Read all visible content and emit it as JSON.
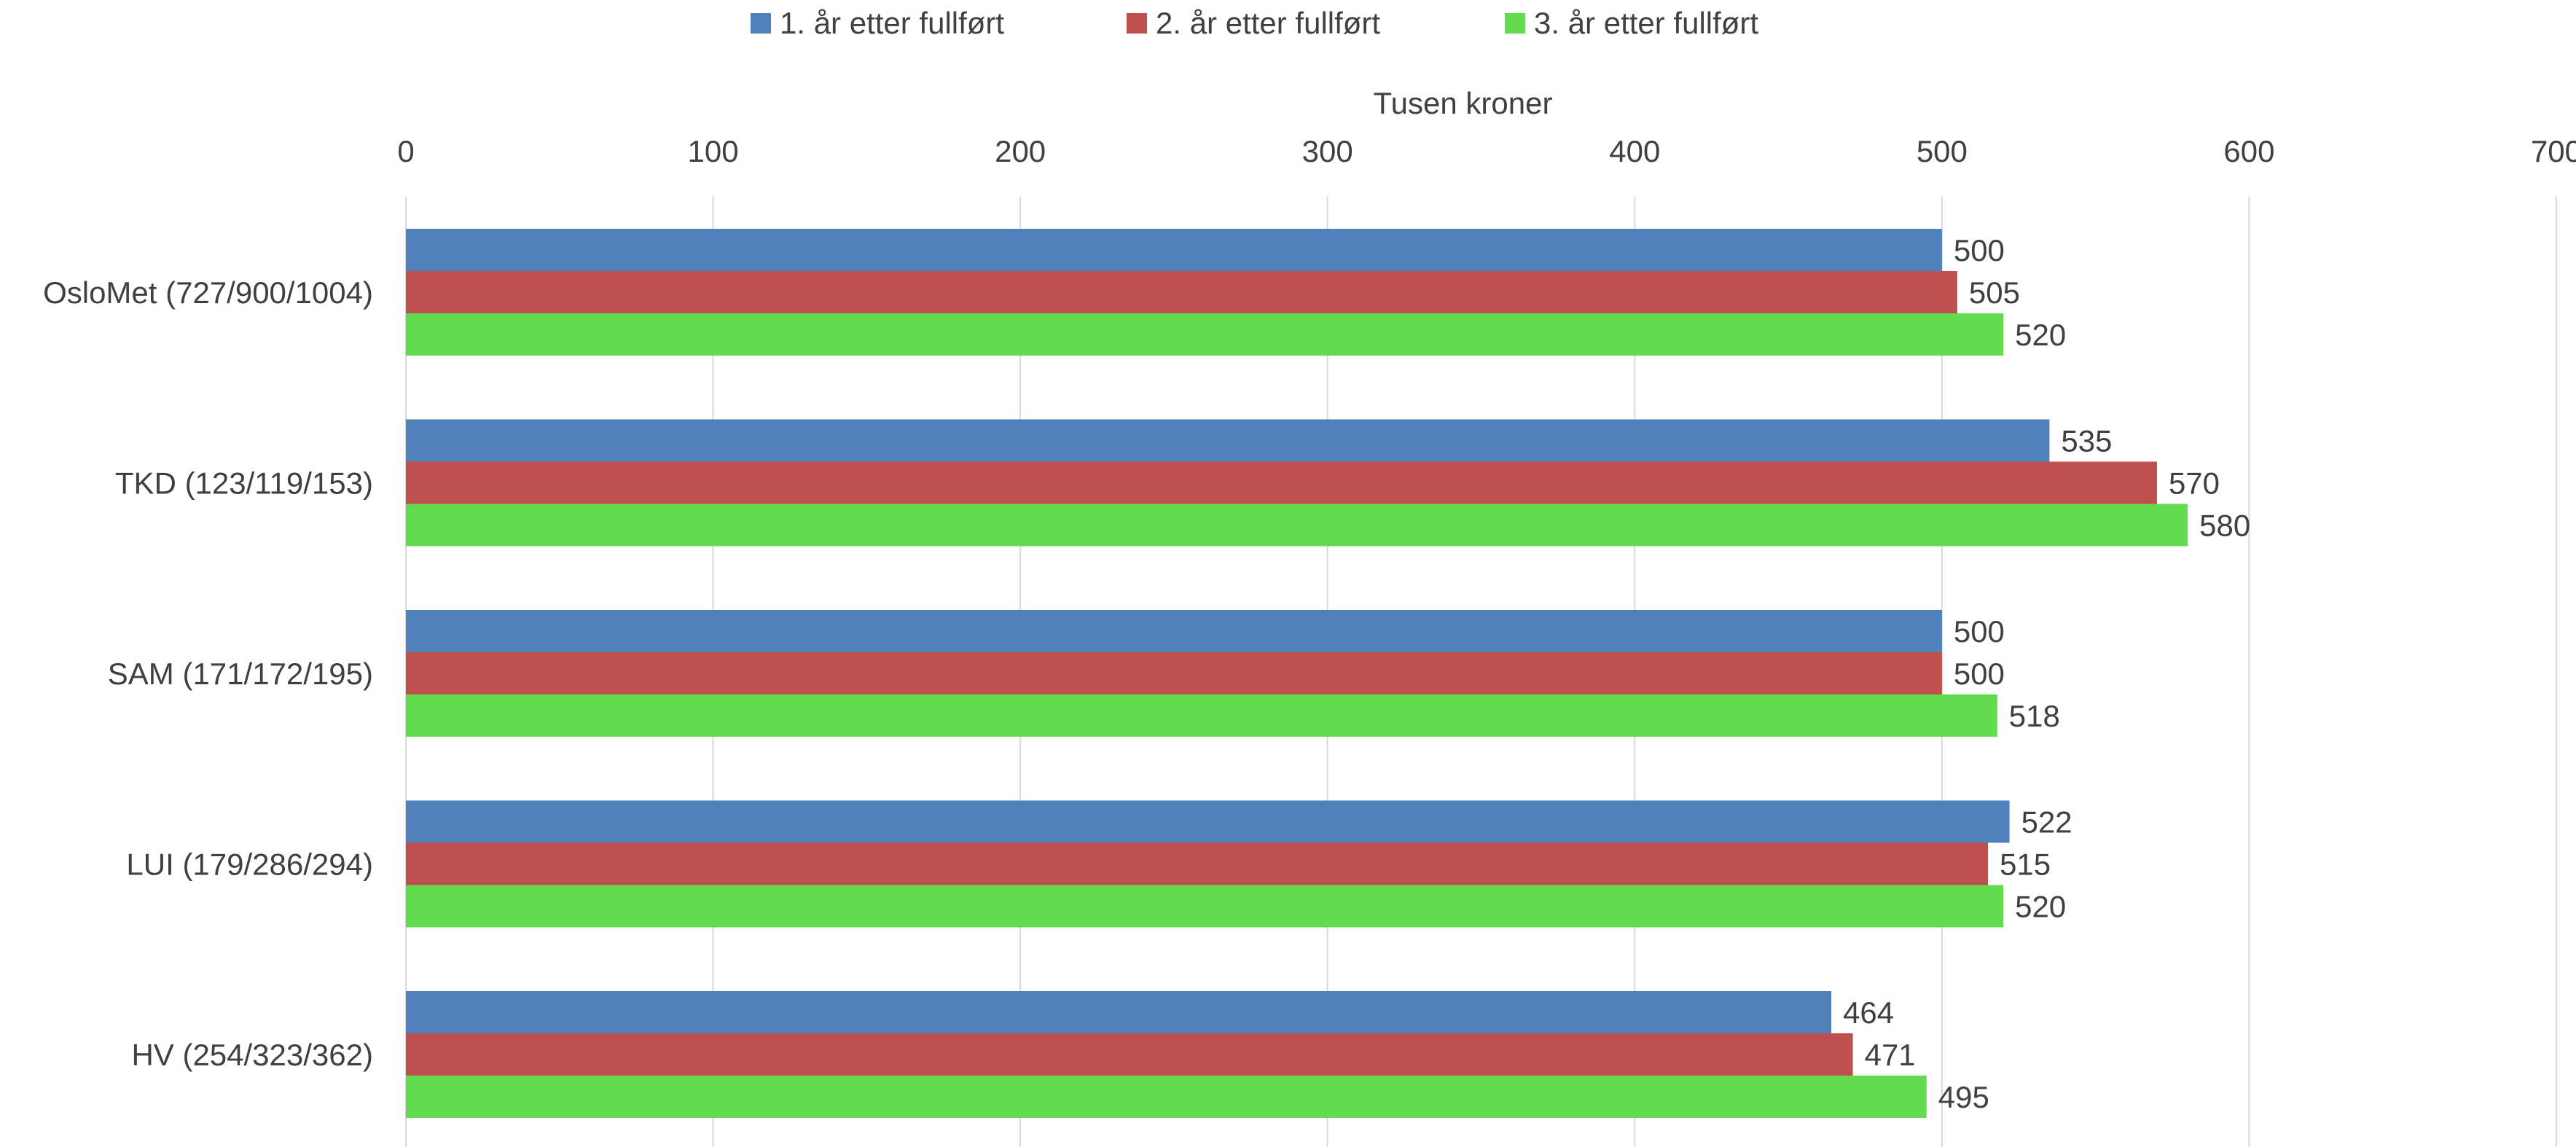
{
  "chart_data": {
    "type": "bar",
    "orientation": "horizontal",
    "xlabel": "Tusen kroner",
    "ylabel": "",
    "xlim": [
      0,
      700
    ],
    "x_ticks": [
      0,
      100,
      200,
      300,
      400,
      500,
      600,
      700
    ],
    "grid": true,
    "legend_position": "top",
    "categories": [
      "OsloMet (727/900/1004)",
      "TKD (123/119/153)",
      "SAM (171/172/195)",
      "LUI (179/286/294)",
      "HV (254/323/362)"
    ],
    "series": [
      {
        "name": "1. år etter fullført",
        "color": "#4f81bd",
        "values": [
          500,
          535,
          500,
          522,
          464
        ]
      },
      {
        "name": "2. år etter fullført",
        "color": "#c0504d",
        "values": [
          505,
          570,
          500,
          515,
          471
        ]
      },
      {
        "name": "3. år etter fullført",
        "color": "#62dc4e",
        "values": [
          520,
          580,
          518,
          520,
          495
        ]
      }
    ],
    "colors": {
      "grid": "#d9d9d9",
      "text": "#404040"
    }
  }
}
